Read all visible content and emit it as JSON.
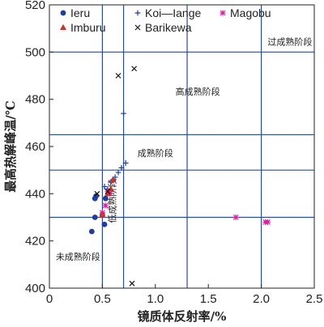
{
  "chart_data": {
    "type": "scatter",
    "xlabel": "镜质体反射率/%",
    "ylabel": "最高热解峰温/℃",
    "xlim": [
      0,
      2.5
    ],
    "ylim": [
      400,
      520
    ],
    "xticks": [
      0,
      0.5,
      1,
      1.5,
      2,
      2.5
    ],
    "yticks": [
      400,
      420,
      440,
      460,
      480,
      500,
      520
    ],
    "tick_labels_x": [
      "0",
      "0.5",
      "1.0",
      "1.5",
      "2.0",
      "2.5"
    ],
    "tick_labels_y": [
      "400",
      "420",
      "440",
      "460",
      "480",
      "500",
      "520"
    ],
    "grid": false,
    "legend_position": "top-left",
    "boundary_lines": {
      "vertical": [
        0.5,
        0.7,
        1.3,
        2.0
      ],
      "horizontal": [
        430,
        450,
        465,
        500
      ],
      "color": "#2e4d8f"
    },
    "region_labels": [
      {
        "text": "未成熟阶段",
        "x": 0.27,
        "y": 413
      },
      {
        "text": "低成熟阶段",
        "x": 0.6,
        "y": 437,
        "vertical": true
      },
      {
        "text": "成熟阶段",
        "x": 1.0,
        "y": 457
      },
      {
        "text": "高成熟阶段",
        "x": 1.4,
        "y": 483
      },
      {
        "text": "过成熟阶段",
        "x": 2.27,
        "y": 504
      }
    ],
    "series": [
      {
        "name": "Ieru",
        "marker": "circle",
        "color": "#1f3c9e",
        "points": [
          [
            0.4,
            424
          ],
          [
            0.43,
            430
          ],
          [
            0.43,
            438
          ],
          [
            0.44,
            439
          ],
          [
            0.5,
            431
          ],
          [
            0.52,
            427
          ],
          [
            0.53,
            438
          ]
        ]
      },
      {
        "name": "Koi—Iange",
        "marker": "plus",
        "color": "#1f3c9e",
        "points": [
          [
            0.52,
            443
          ],
          [
            0.55,
            442
          ],
          [
            0.58,
            445
          ],
          [
            0.62,
            447
          ],
          [
            0.65,
            449
          ],
          [
            0.68,
            451
          ],
          [
            0.72,
            453
          ],
          [
            0.7,
            474
          ]
        ]
      },
      {
        "name": "Magobu",
        "marker": "asterisk",
        "color": "#d6249f",
        "points": [
          [
            0.5,
            432
          ],
          [
            0.53,
            435
          ],
          [
            0.55,
            441
          ],
          [
            0.57,
            440
          ],
          [
            1.76,
            430
          ],
          [
            2.04,
            428
          ],
          [
            2.06,
            428
          ]
        ]
      },
      {
        "name": "Imburu",
        "marker": "triangle",
        "color": "#c0392b",
        "points": [
          [
            0.5,
            431
          ],
          [
            0.55,
            440
          ],
          [
            0.58,
            442
          ],
          [
            0.6,
            446
          ]
        ]
      },
      {
        "name": "Barikewa",
        "marker": "x",
        "color": "#111111",
        "points": [
          [
            0.45,
            440
          ],
          [
            0.55,
            441
          ],
          [
            0.65,
            490
          ],
          [
            0.8,
            493
          ],
          [
            0.78,
            402
          ]
        ]
      }
    ]
  }
}
